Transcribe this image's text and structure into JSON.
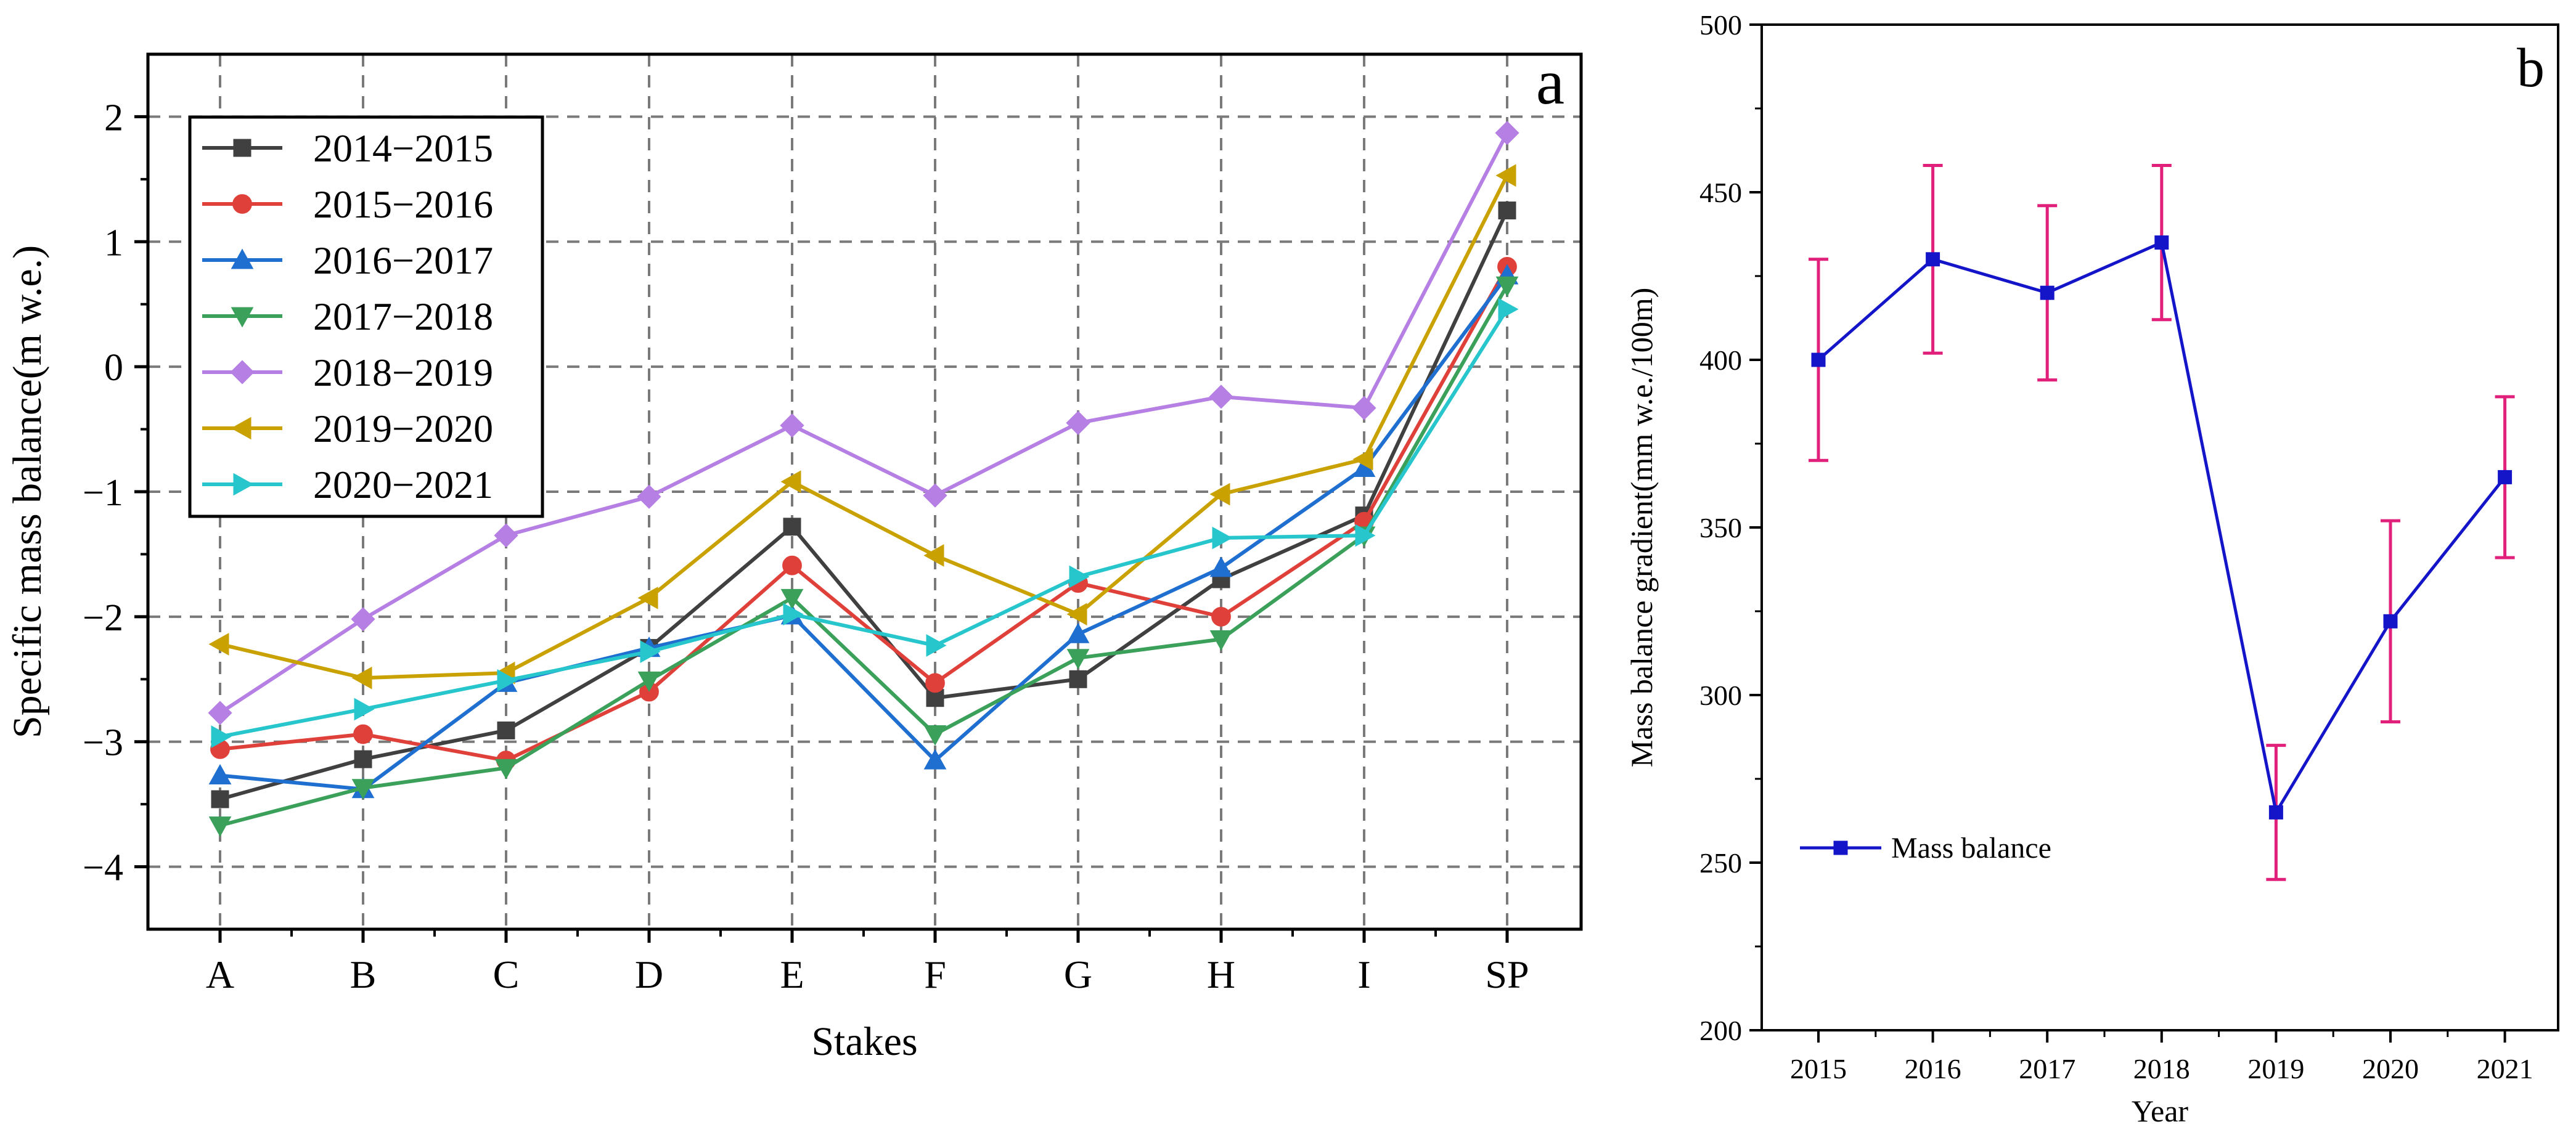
{
  "chart_data": [
    {
      "type": "line",
      "panel_label": "a",
      "title": "",
      "xlabel": "Stakes",
      "ylabel": "Specific mass balance(m w.e.)",
      "categories": [
        "A",
        "B",
        "C",
        "D",
        "E",
        "F",
        "G",
        "H",
        "I",
        "SP"
      ],
      "ylim": [
        -4.5,
        2.5
      ],
      "yticks": [
        -4,
        -3,
        -2,
        -1,
        0,
        1,
        2
      ],
      "ytick_labels": [
        "−4",
        "−3",
        "−2",
        "−1",
        "0",
        "1",
        "2"
      ],
      "grid": true,
      "legend_position": "top-left",
      "series": [
        {
          "name": "2014−2015",
          "color": "#404040",
          "marker": "square",
          "values": [
            -3.46,
            -3.14,
            -2.91,
            -2.25,
            -1.28,
            -2.65,
            -2.5,
            -1.7,
            -1.19,
            1.25
          ]
        },
        {
          "name": "2015−2016",
          "color": "#e0403a",
          "marker": "circle",
          "values": [
            -3.06,
            -2.94,
            -3.15,
            -2.6,
            -1.59,
            -2.53,
            -1.73,
            -2.0,
            -1.24,
            0.8
          ]
        },
        {
          "name": "2016−2017",
          "color": "#1f6fd1",
          "marker": "triangle-up",
          "values": [
            -3.27,
            -3.38,
            -2.53,
            -2.25,
            -1.99,
            -3.15,
            -2.14,
            -1.61,
            -0.81,
            0.73
          ]
        },
        {
          "name": "2017−2018",
          "color": "#3aa05a",
          "marker": "triangle-down",
          "values": [
            -3.67,
            -3.37,
            -3.21,
            -2.51,
            -1.85,
            -2.94,
            -2.33,
            -2.18,
            -1.35,
            0.65
          ]
        },
        {
          "name": "2018−2019",
          "color": "#b57fe3",
          "marker": "diamond",
          "values": [
            -2.77,
            -2.02,
            -1.35,
            -1.04,
            -0.47,
            -1.03,
            -0.45,
            -0.24,
            -0.33,
            1.87
          ]
        },
        {
          "name": "2019−2020",
          "color": "#c9a100",
          "marker": "triangle-left",
          "values": [
            -2.22,
            -2.49,
            -2.45,
            -1.85,
            -0.92,
            -1.51,
            -1.98,
            -1.02,
            -0.74,
            1.53
          ]
        },
        {
          "name": "2020−2021",
          "color": "#26c6cc",
          "marker": "triangle-right",
          "values": [
            -2.96,
            -2.74,
            -2.51,
            -2.28,
            -1.98,
            -2.23,
            -1.68,
            -1.37,
            -1.35,
            0.46
          ]
        }
      ]
    },
    {
      "type": "line",
      "panel_label": "b",
      "title": "",
      "xlabel": "Year",
      "ylabel": "Mass balance gradient(mm w.e./100m)",
      "categories": [
        "2015",
        "2016",
        "2017",
        "2018",
        "2019",
        "2020",
        "2021"
      ],
      "ylim": [
        200,
        500
      ],
      "yticks": [
        200,
        250,
        300,
        350,
        400,
        450,
        500
      ],
      "ytick_labels": [
        "200",
        "250",
        "300",
        "350",
        "400",
        "450",
        "500"
      ],
      "grid": false,
      "legend_position": "lower-left",
      "series": [
        {
          "name": "Mass balance",
          "color": "#1414c8",
          "marker": "square",
          "errorbar_color": "#e0207a",
          "values": [
            400,
            430,
            420,
            435,
            265,
            322,
            365
          ],
          "error": [
            30,
            28,
            26,
            23,
            20,
            30,
            24
          ]
        }
      ]
    }
  ]
}
